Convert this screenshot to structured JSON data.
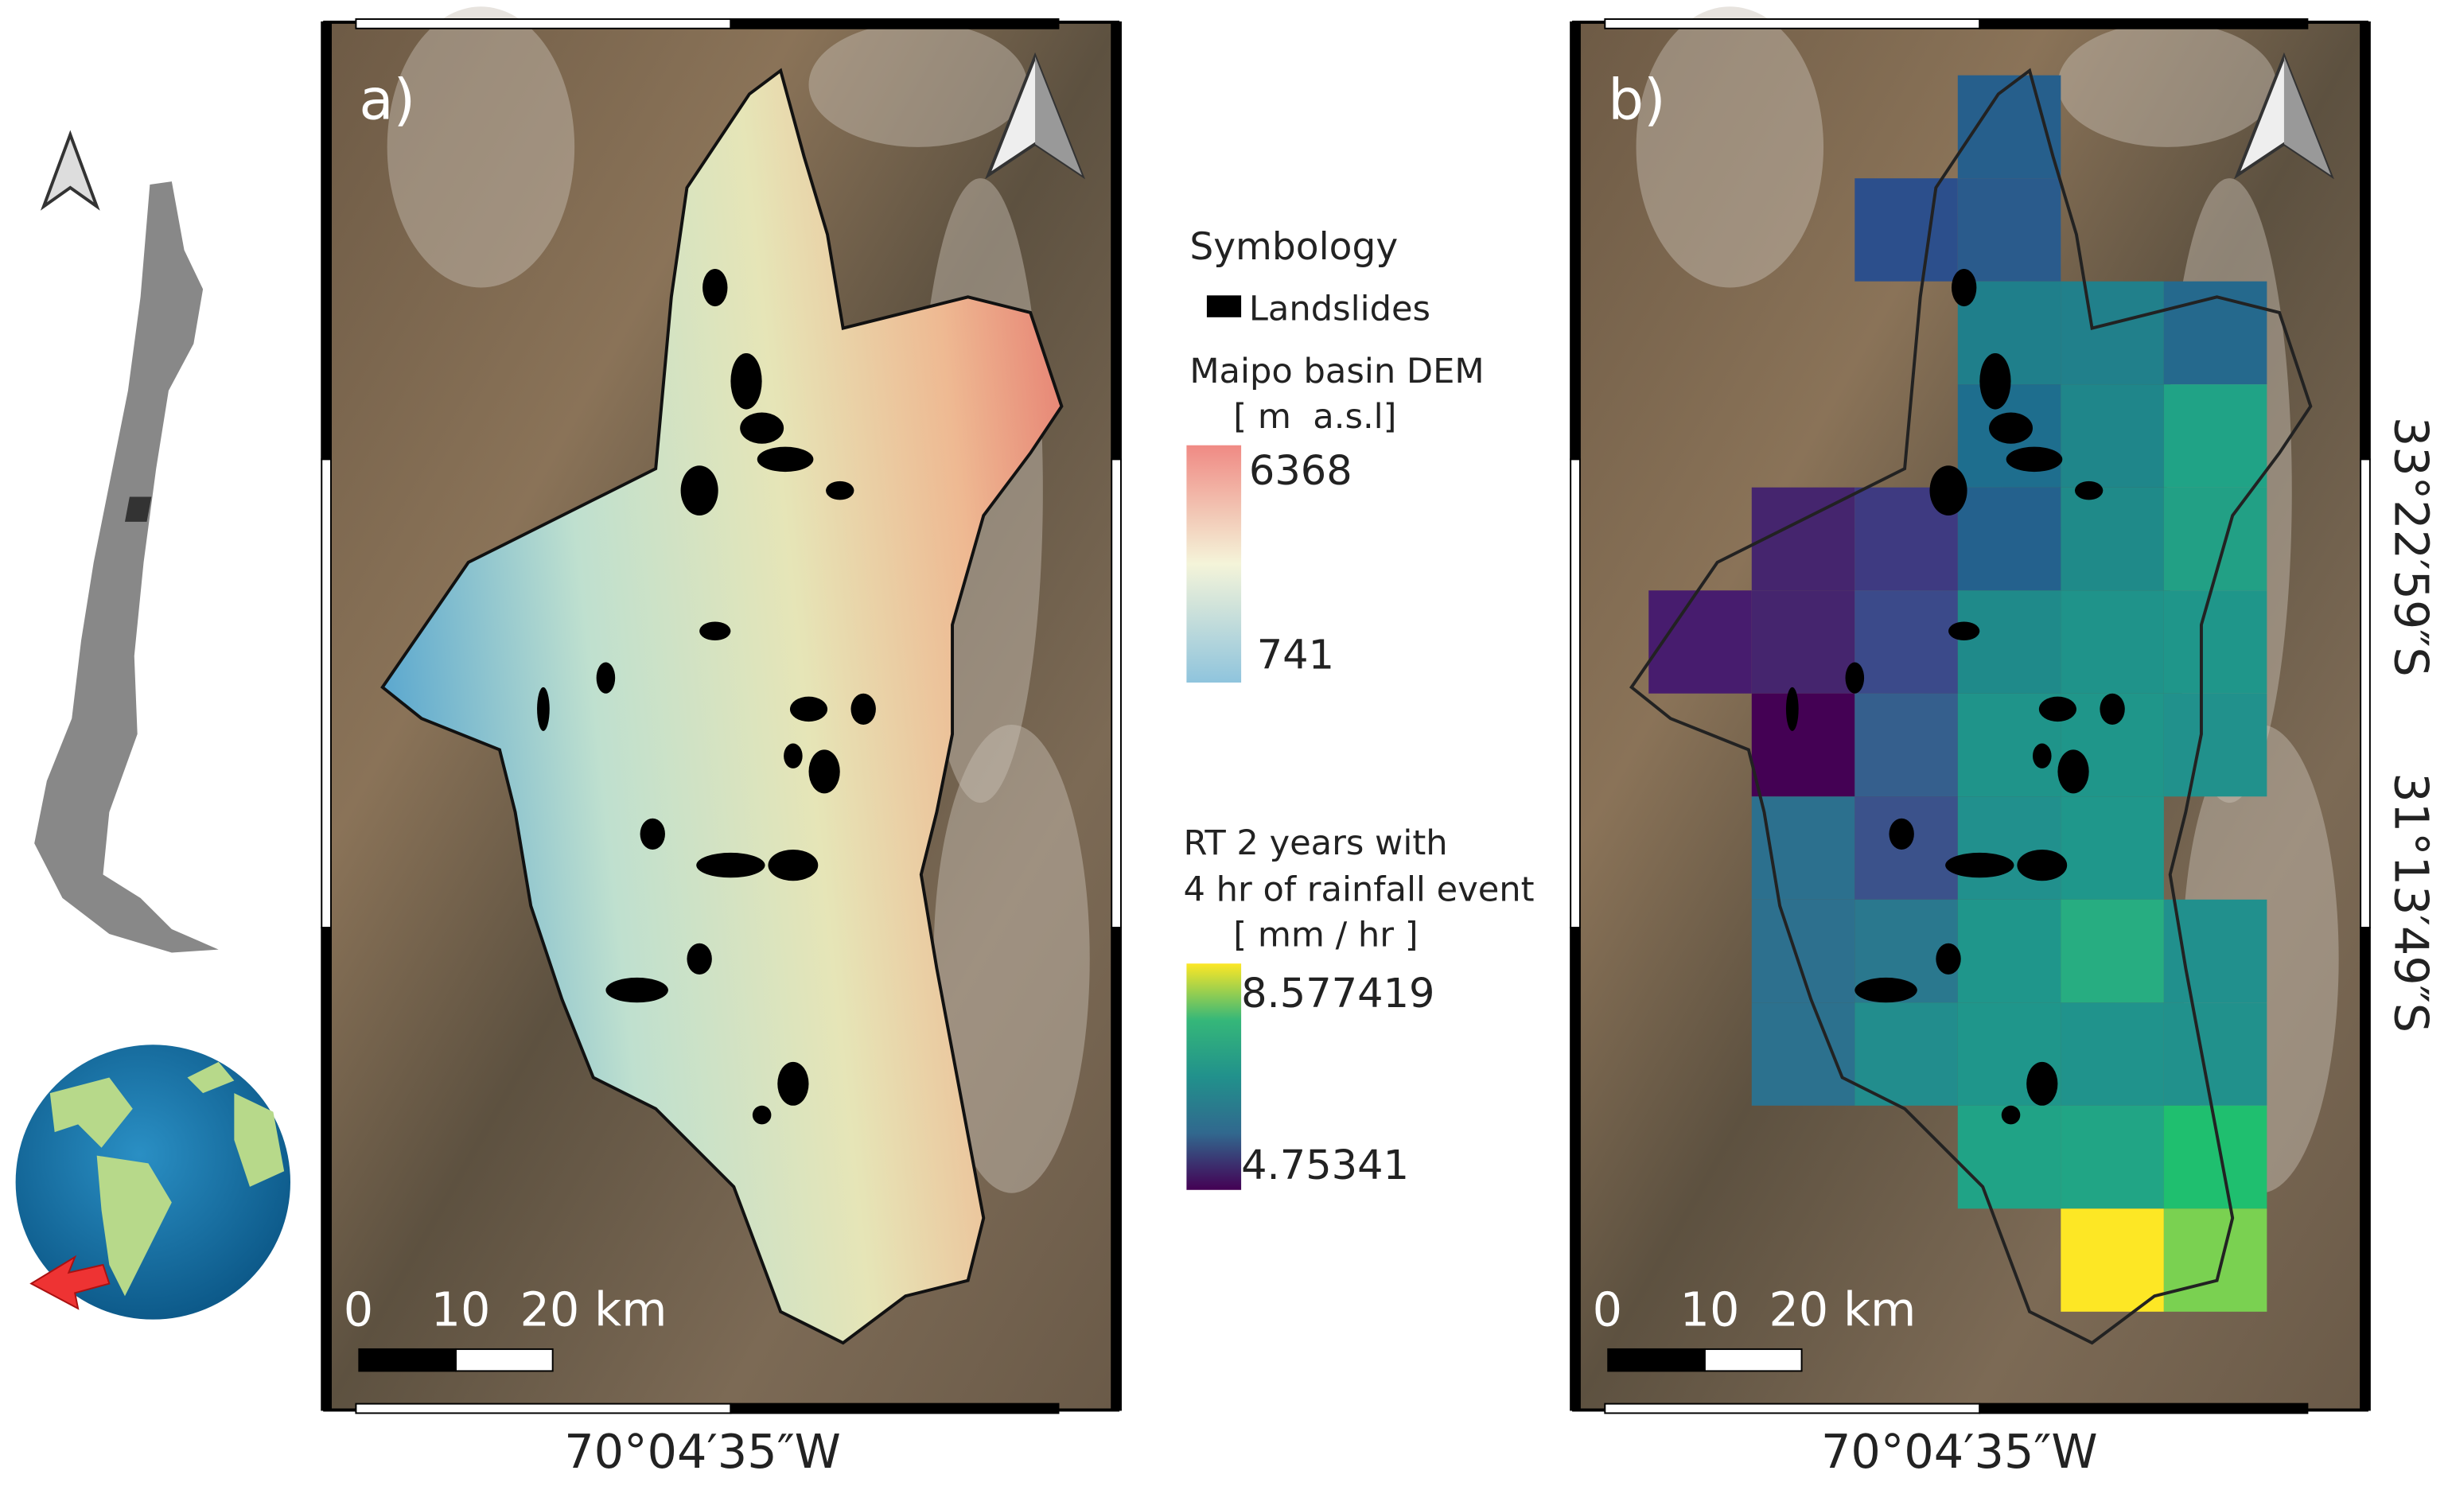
{
  "panels": [
    {
      "label": "a)",
      "scale_labels": [
        "0",
        "10",
        "20 km"
      ],
      "longitude": "70°04′35″W"
    },
    {
      "label": "b)",
      "scale_labels": [
        "0",
        "10",
        "20 km"
      ],
      "longitude": "70°04′35″W",
      "latitudes": [
        "33°22′59″S",
        "31°13′49″S"
      ]
    }
  ],
  "legend": {
    "title": "Symbology",
    "landslides": "Landslides",
    "dem": {
      "title": "Maipo basin DEM",
      "unit": "[ m  a.s.l]",
      "max": 6368,
      "min": 741
    },
    "rainfall": {
      "title_lines": [
        "RT 2 years with",
        "4 hr of rainfall event"
      ],
      "unit": "[ mm / hr ]",
      "max": 8.577419,
      "min": 4.75341
    }
  }
}
